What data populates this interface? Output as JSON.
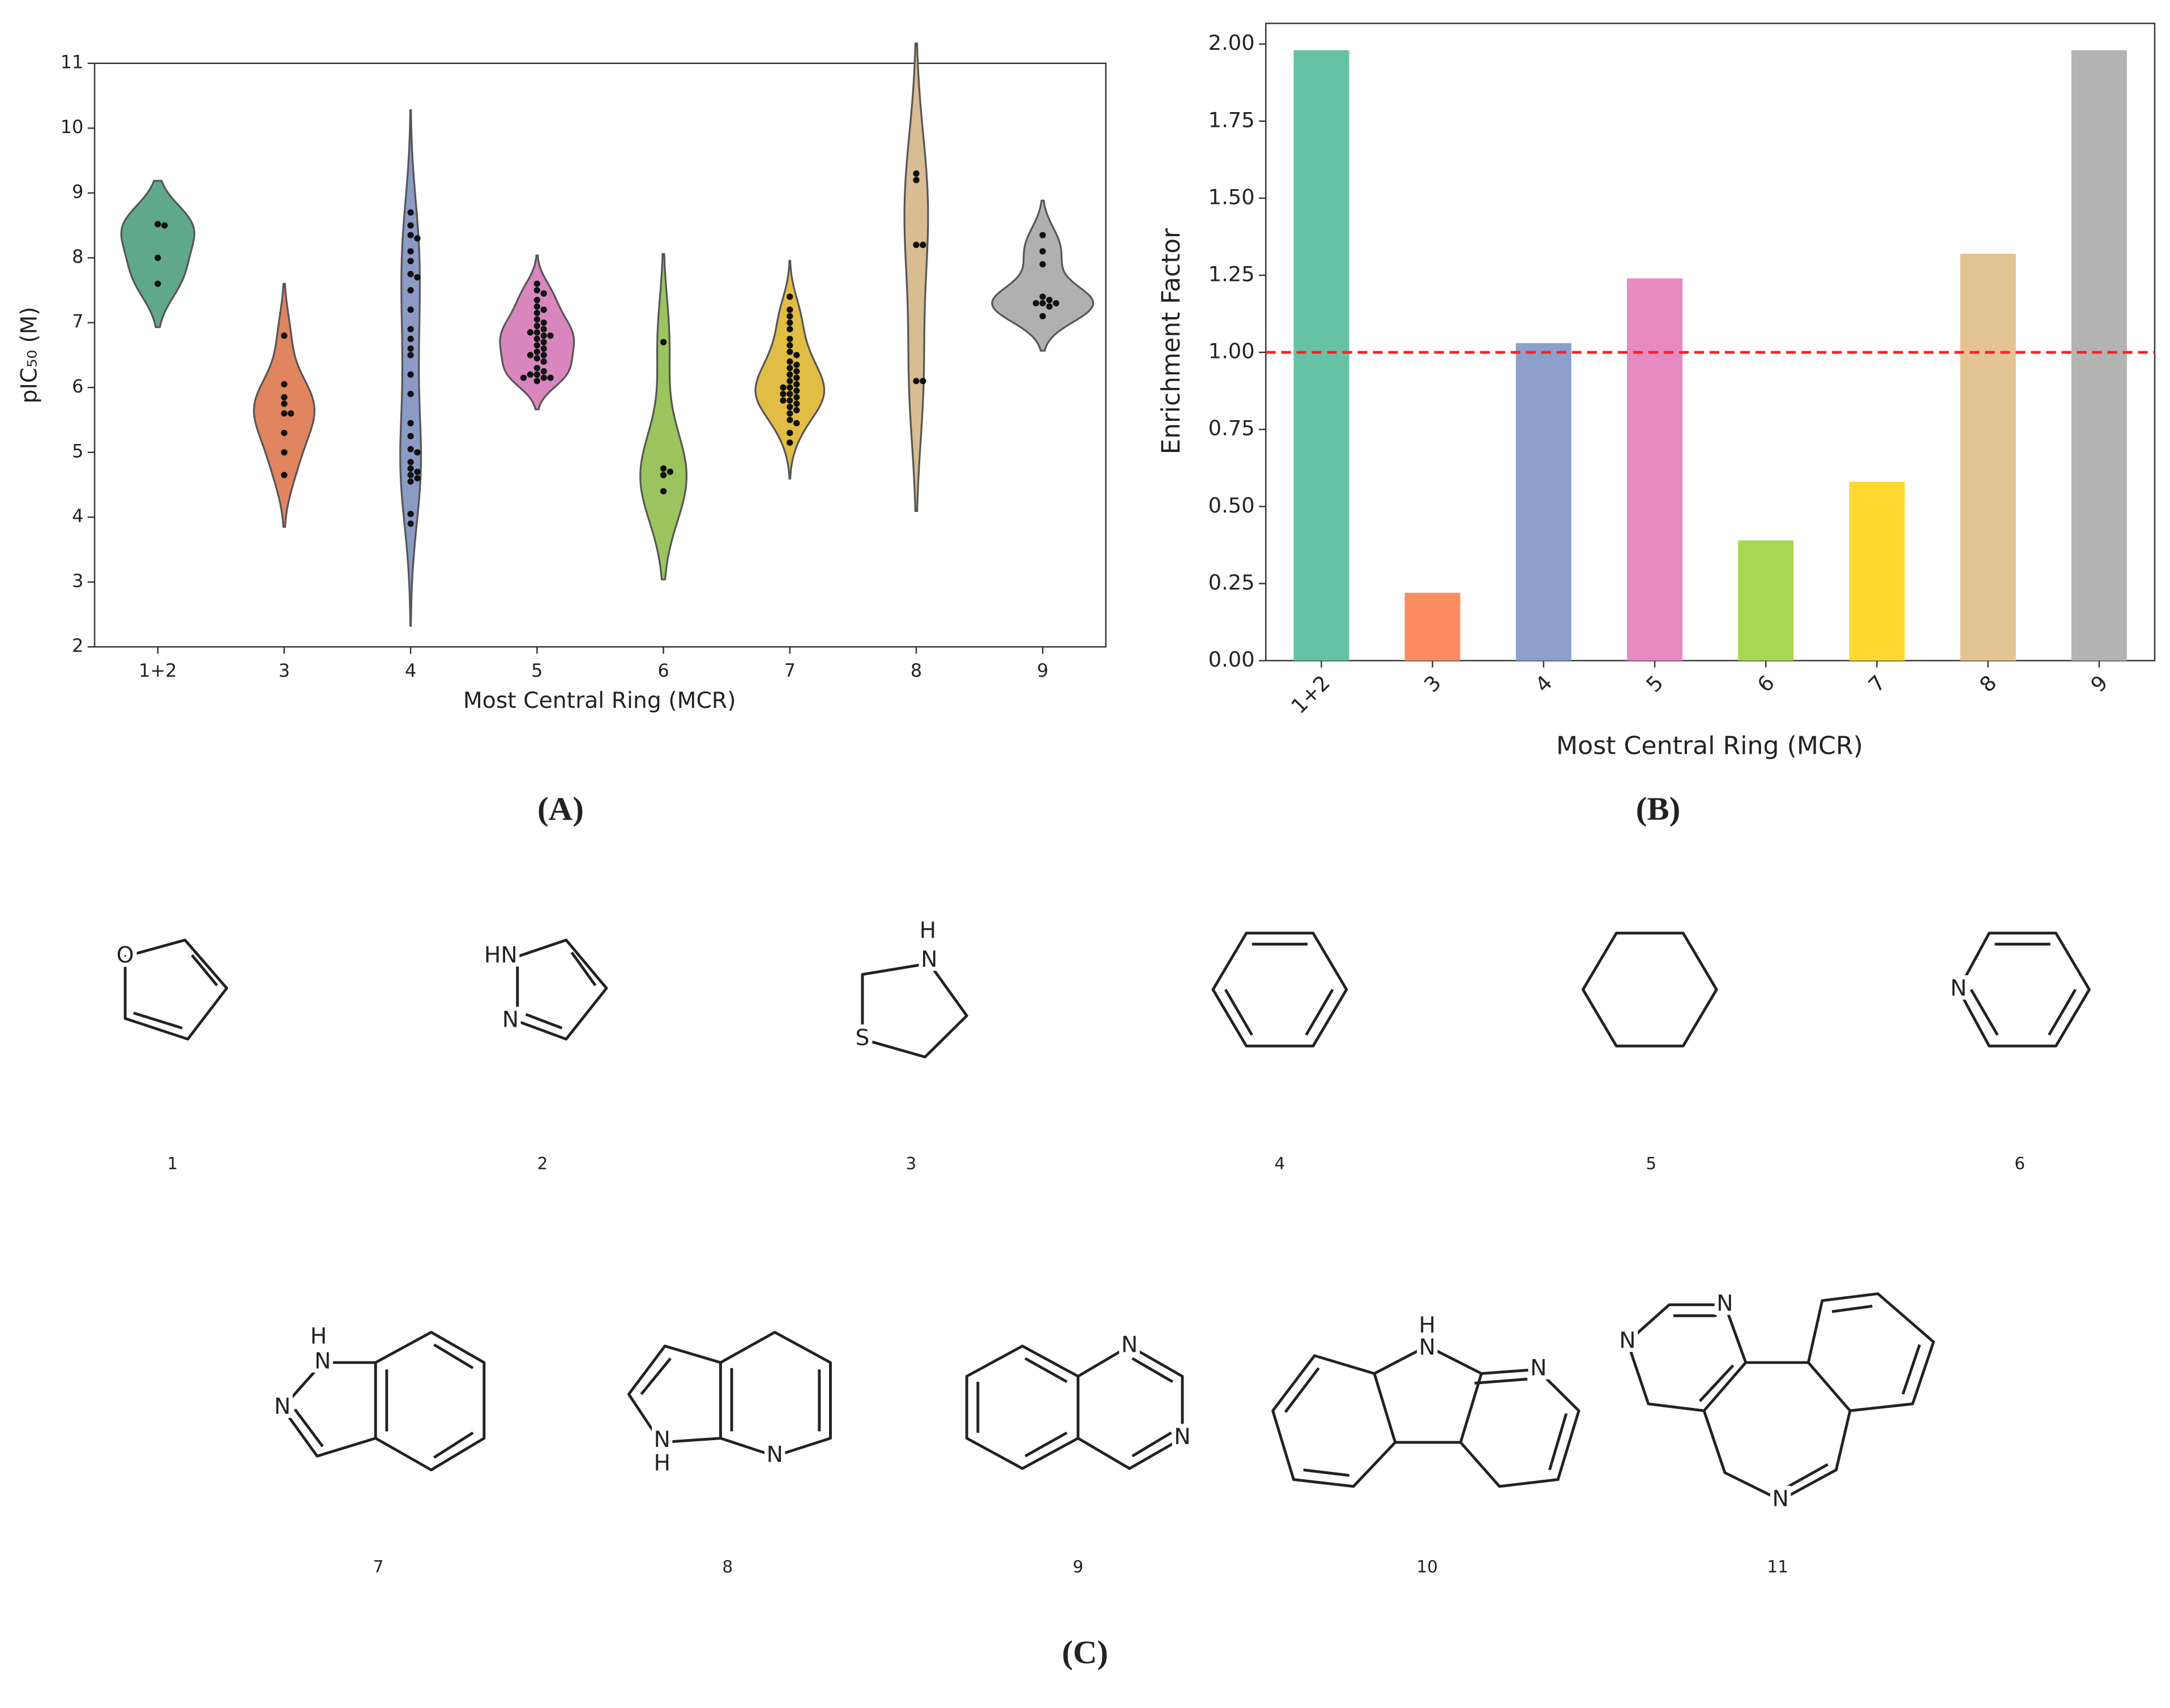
{
  "chart_data": [
    {
      "type": "violin",
      "ylabel": "pIC₅₀ (M)",
      "xlabel": "Most Central Ring (MCR)",
      "categories": [
        "1+2",
        "3",
        "4",
        "5",
        "6",
        "7",
        "8",
        "9"
      ],
      "colors": [
        "#5fa88a",
        "#e0855f",
        "#8b9bc6",
        "#d986be",
        "#9cc45e",
        "#e2bd45",
        "#d8bc92",
        "#b0b0b0"
      ],
      "point_color": "#111111",
      "values": [
        [
          8.52,
          8.5,
          8.0,
          7.6
        ],
        [
          6.8,
          6.05,
          5.85,
          5.75,
          5.6,
          5.6,
          5.3,
          5.0,
          4.65
        ],
        [
          8.7,
          8.5,
          8.35,
          8.3,
          8.1,
          7.95,
          7.75,
          7.7,
          7.5,
          7.2,
          6.9,
          6.75,
          6.6,
          6.5,
          6.2,
          5.9,
          5.45,
          5.25,
          5.05,
          5.0,
          4.85,
          4.75,
          4.7,
          4.65,
          4.6,
          4.55,
          4.05,
          3.9
        ],
        [
          7.6,
          7.5,
          7.45,
          7.35,
          7.25,
          7.2,
          7.15,
          7.05,
          7.0,
          6.95,
          6.9,
          6.85,
          6.85,
          6.8,
          6.8,
          6.75,
          6.7,
          6.65,
          6.6,
          6.55,
          6.5,
          6.5,
          6.45,
          6.4,
          6.3,
          6.25,
          6.2,
          6.2,
          6.15,
          6.15,
          6.15,
          6.1
        ],
        [
          6.7,
          4.75,
          4.7,
          4.65,
          4.4
        ],
        [
          7.4,
          7.2,
          7.1,
          7.0,
          6.9,
          6.75,
          6.65,
          6.55,
          6.5,
          6.4,
          6.35,
          6.3,
          6.25,
          6.2,
          6.15,
          6.1,
          6.05,
          6.0,
          6.0,
          5.95,
          5.9,
          5.9,
          5.85,
          5.8,
          5.8,
          5.75,
          5.7,
          5.65,
          5.6,
          5.5,
          5.45,
          5.3,
          5.15
        ],
        [
          9.3,
          9.2,
          8.2,
          8.2,
          6.1,
          6.1
        ],
        [
          8.35,
          8.1,
          7.9,
          7.4,
          7.35,
          7.3,
          7.3,
          7.3,
          7.25,
          7.1
        ]
      ],
      "ylim": [
        2,
        11
      ],
      "yticks": [
        2,
        3,
        4,
        5,
        6,
        7,
        8,
        9,
        10,
        11
      ]
    },
    {
      "type": "bar",
      "ylabel": "Enrichment Factor",
      "xlabel": "Most Central Ring (MCR)",
      "categories": [
        "1+2",
        "3",
        "4",
        "5",
        "6",
        "7",
        "8",
        "9"
      ],
      "values": [
        1.98,
        0.22,
        1.03,
        1.24,
        0.39,
        0.58,
        1.32,
        1.98
      ],
      "colors": [
        "#66c2a5",
        "#fc8d62",
        "#8da0cb",
        "#e78ac3",
        "#a6d854",
        "#ffd92f",
        "#e5c494",
        "#b3b3b3"
      ],
      "ylim": [
        0,
        2.067
      ],
      "yticks": [
        {
          "value": 0,
          "label": "0.00"
        },
        {
          "value": 0.25,
          "label": "0.25"
        },
        {
          "value": 0.5,
          "label": "0.50"
        },
        {
          "value": 0.75,
          "label": "0.75"
        },
        {
          "value": 1,
          "label": "1.00"
        },
        {
          "value": 1.25,
          "label": "1.25"
        },
        {
          "value": 1.5,
          "label": "1.50"
        },
        {
          "value": 1.75,
          "label": "1.75"
        },
        {
          "value": 2,
          "label": "2.00"
        }
      ],
      "reference_line": {
        "value": 1.0,
        "color": "#ff2020"
      },
      "xtick_rotation": 45
    }
  ],
  "panels": [
    "(A)",
    "(B)",
    "(C)"
  ],
  "structures": [
    {
      "label": "1",
      "atoms": [
        "O"
      ]
    },
    {
      "label": "2",
      "atoms": [
        "HN",
        "N"
      ]
    },
    {
      "label": "3",
      "atoms": [
        "H",
        "N",
        "S"
      ]
    },
    {
      "label": "4",
      "atoms": []
    },
    {
      "label": "5",
      "atoms": []
    },
    {
      "label": "6",
      "atoms": [
        "N"
      ]
    },
    {
      "label": "7",
      "atoms": [
        "H",
        "N",
        "N"
      ]
    },
    {
      "label": "8",
      "atoms": [
        "N",
        "H",
        "N"
      ]
    },
    {
      "label": "9",
      "atoms": [
        "N",
        "N"
      ]
    },
    {
      "label": "10",
      "atoms": [
        "H",
        "N",
        "N"
      ]
    },
    {
      "label": "11",
      "atoms": [
        "N",
        "N",
        "N"
      ]
    }
  ]
}
